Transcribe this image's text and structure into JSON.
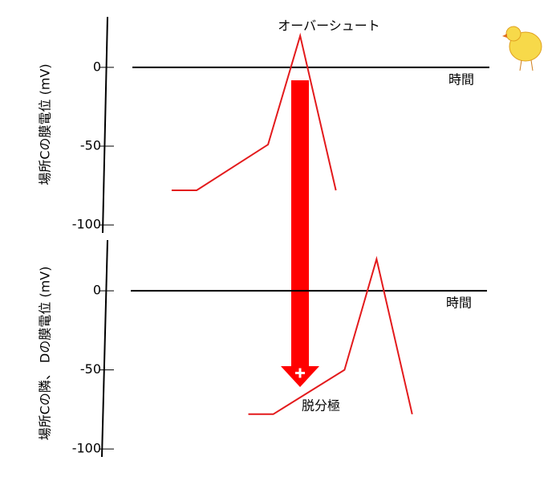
{
  "chart_data": [
    {
      "type": "line",
      "ylabel": "場所Cの膜電位 (mV)",
      "xlabel": "時間",
      "annotation": "オーバーシュート",
      "x": [
        1.1,
        1.8,
        3.8,
        4.7,
        5.7
      ],
      "values": [
        -78,
        -78,
        -49,
        20,
        -78
      ],
      "color": "#e31a1c",
      "xlim": [
        0,
        10
      ],
      "ylim": [
        -105,
        32
      ],
      "yticks": [
        0,
        -50,
        -100
      ]
    },
    {
      "type": "line",
      "ylabel": "場所Cの隣、 Dの膜電位 (mV)",
      "xlabel": "時間",
      "annotation": "脱分極",
      "x": [
        3.3,
        4.0,
        6.0,
        6.9,
        7.9
      ],
      "values": [
        -78,
        -78,
        -50,
        20,
        -78
      ],
      "color": "#e31a1c",
      "xlim": [
        0,
        10
      ],
      "ylim": [
        -105,
        32
      ],
      "yticks": [
        0,
        -50,
        -100
      ]
    }
  ]
}
